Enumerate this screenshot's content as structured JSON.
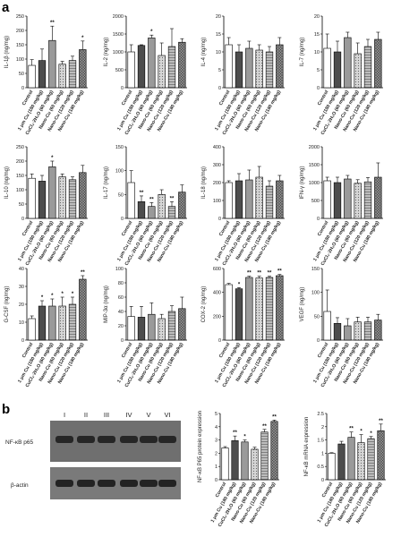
{
  "panel_letters": {
    "a": "a",
    "b": "b"
  },
  "categories": [
    "Control",
    "1 μm Cu (180 mg/kg)",
    "CuCl₂·2H₂O (60 mg/kg)",
    "Nano-Cu (60 mg/kg)",
    "Nano-Cu (120 mg/kg)",
    "Nano-Cu (180 mg/kg)"
  ],
  "bar_colors": [
    "#ffffff",
    "#4d4d4d",
    "#9a9a9a",
    "#c8c8c8",
    "#b3b3b3",
    "#7a7a7a"
  ],
  "chart_data": [
    {
      "type": "bar",
      "ylabel": "IL-1β (ng/mg)",
      "ylim": [
        0,
        250
      ],
      "yticks": [
        0,
        50,
        100,
        150,
        200,
        250
      ],
      "values": [
        78,
        95,
        165,
        82,
        95,
        133
      ],
      "errors": [
        20,
        40,
        50,
        10,
        15,
        30
      ],
      "stars": [
        "",
        "",
        "**",
        "",
        "",
        "*"
      ]
    },
    {
      "type": "bar",
      "ylabel": "IL-2 (ng/mg)",
      "ylim": [
        0,
        2000
      ],
      "yticks": [
        0,
        500,
        1000,
        1500,
        2000
      ],
      "values": [
        1000,
        1180,
        1390,
        900,
        1150,
        1270
      ],
      "errors": [
        200,
        20,
        80,
        350,
        500,
        100
      ],
      "stars": [
        "",
        "",
        "*",
        "",
        "",
        ""
      ]
    },
    {
      "type": "bar",
      "ylabel": "IL-4 (ng/mg)",
      "ylim": [
        0,
        20
      ],
      "yticks": [
        0,
        5,
        10,
        15,
        20
      ],
      "values": [
        12,
        10,
        11,
        10.5,
        10,
        12
      ],
      "errors": [
        2,
        2,
        2,
        1.5,
        1.5,
        2
      ],
      "stars": [
        "",
        "",
        "",
        "",
        "",
        ""
      ]
    },
    {
      "type": "bar",
      "ylabel": "IL-7 (ng/mg)",
      "ylim": [
        0,
        20
      ],
      "yticks": [
        0,
        5,
        10,
        15,
        20
      ],
      "values": [
        11,
        10,
        14,
        9.5,
        11.5,
        13.5
      ],
      "errors": [
        4,
        3,
        1.5,
        3,
        2,
        2
      ],
      "stars": [
        "",
        "",
        "",
        "",
        "",
        ""
      ]
    },
    {
      "type": "bar",
      "ylabel": "IL-10 (ng/mg)",
      "ylim": [
        0,
        250
      ],
      "yticks": [
        0,
        50,
        100,
        150,
        200,
        250
      ],
      "values": [
        140,
        130,
        180,
        145,
        135,
        160
      ],
      "errors": [
        15,
        20,
        20,
        10,
        10,
        25
      ],
      "stars": [
        "",
        "",
        "*",
        "",
        "",
        ""
      ]
    },
    {
      "type": "bar",
      "ylabel": "IL-17 (ng/mg)",
      "ylim": [
        0,
        150
      ],
      "yticks": [
        0,
        50,
        100,
        150
      ],
      "values": [
        75,
        35,
        25,
        50,
        25,
        55
      ],
      "errors": [
        25,
        12,
        8,
        10,
        10,
        15
      ],
      "stars": [
        "",
        "**",
        "**",
        "",
        "**",
        ""
      ]
    },
    {
      "type": "bar",
      "ylabel": "IL-18 (ng/mg)",
      "ylim": [
        0,
        400
      ],
      "yticks": [
        0,
        100,
        200,
        300,
        400
      ],
      "values": [
        200,
        210,
        215,
        230,
        180,
        210
      ],
      "errors": [
        10,
        40,
        55,
        60,
        30,
        30
      ],
      "stars": [
        "",
        "",
        "",
        "",
        "",
        ""
      ]
    },
    {
      "type": "bar",
      "ylabel": "IFN-γ (ng/mg)",
      "ylim": [
        0,
        2000
      ],
      "yticks": [
        0,
        500,
        1000,
        1500,
        2000
      ],
      "values": [
        1050,
        1000,
        1100,
        980,
        1020,
        1150
      ],
      "errors": [
        100,
        150,
        100,
        100,
        120,
        400
      ],
      "stars": [
        "",
        "",
        "",
        "",
        "",
        ""
      ]
    },
    {
      "type": "bar",
      "ylabel": "G-CSF (ng/mg)",
      "ylim": [
        0,
        40
      ],
      "yticks": [
        0,
        10,
        20,
        30,
        40
      ],
      "values": [
        12,
        19,
        19,
        19,
        20,
        34
      ],
      "errors": [
        1.5,
        3,
        4,
        5,
        4,
        2
      ],
      "stars": [
        "",
        "*",
        "*",
        "*",
        "*",
        "**"
      ]
    },
    {
      "type": "bar",
      "ylabel": "MIP-3α (ng/mg)",
      "ylim": [
        0,
        100
      ],
      "yticks": [
        0,
        20,
        40,
        60,
        80,
        100
      ],
      "values": [
        33,
        32,
        36,
        30,
        40,
        44
      ],
      "errors": [
        14,
        15,
        16,
        6,
        8,
        16
      ],
      "stars": [
        "",
        "",
        "",
        "",
        "",
        ""
      ]
    },
    {
      "type": "bar",
      "ylabel": "COX-2 (ng/mg)",
      "ylim": [
        0,
        600
      ],
      "yticks": [
        0,
        200,
        400,
        600
      ],
      "values": [
        465,
        430,
        525,
        520,
        525,
        540
      ],
      "errors": [
        10,
        10,
        10,
        15,
        10,
        10
      ],
      "stars": [
        "",
        "*",
        "**",
        "**",
        "**",
        "**"
      ]
    },
    {
      "type": "bar",
      "ylabel": "VEGF (ng/mg)",
      "ylim": [
        0,
        150
      ],
      "yticks": [
        0,
        50,
        100,
        150
      ],
      "values": [
        60,
        35,
        30,
        38,
        38,
        42
      ],
      "errors": [
        45,
        12,
        15,
        10,
        10,
        12
      ],
      "stars": [
        "",
        "",
        "",
        "",
        "",
        ""
      ]
    },
    {
      "type": "bar",
      "ylabel": "NF-κB P65 protein expression",
      "ylim": [
        0,
        5
      ],
      "yticks": [
        0,
        1,
        2,
        3,
        4,
        5
      ],
      "values": [
        2.4,
        2.95,
        2.85,
        2.3,
        3.6,
        4.4
      ],
      "errors": [
        0.1,
        0.35,
        0.15,
        0.15,
        0.2,
        0.1
      ],
      "stars": [
        "",
        "**",
        "*",
        "",
        "**",
        "**"
      ]
    },
    {
      "type": "bar",
      "ylabel": "NF-κB mRNA expression",
      "ylim": [
        0,
        2.5
      ],
      "yticks": [
        0,
        0.5,
        1,
        1.5,
        2,
        2.5
      ],
      "values": [
        1.0,
        1.35,
        1.6,
        1.4,
        1.55,
        1.85
      ],
      "errors": [
        0.02,
        0.1,
        0.2,
        0.3,
        0.08,
        0.25
      ],
      "stars": [
        "",
        "",
        "**",
        "*",
        "*",
        "**"
      ]
    }
  ],
  "blot": {
    "lanes": [
      "I",
      "II",
      "III",
      "IV",
      "V",
      "VI"
    ],
    "row_labels": [
      "NF-κB p65",
      "β-actin"
    ]
  }
}
